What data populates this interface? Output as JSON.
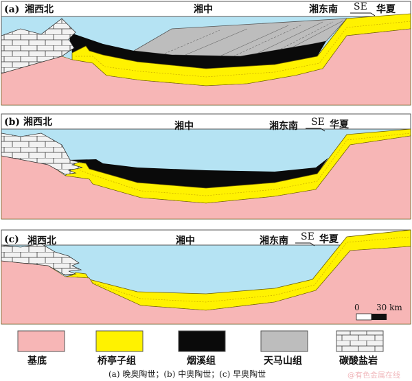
{
  "panels": [
    {
      "id": "a",
      "tag": "(a)",
      "left": "湘西北",
      "center": "湘中",
      "right": "湘东南",
      "direction": "SE",
      "far_right": "华夏",
      "layers": [
        "基底",
        "桥亭子组",
        "烟溪组",
        "天马山组",
        "碳酸盐岩"
      ]
    },
    {
      "id": "b",
      "tag": "(b)",
      "left": "湘西北",
      "center": "湘中",
      "right": "湘东南",
      "direction": "SE",
      "far_right": "华夏",
      "layers": [
        "基底",
        "桥亭子组",
        "烟溪组",
        "碳酸盐岩"
      ]
    },
    {
      "id": "c",
      "tag": "(c)",
      "left": "湘西北",
      "center": "湘中",
      "right": "湘东南",
      "direction": "SE",
      "far_right": "华夏",
      "layers": [
        "基底",
        "桥亭子组",
        "碳酸盐岩"
      ]
    }
  ],
  "scale_bar": {
    "start": "0",
    "end": "30 km"
  },
  "legend": [
    {
      "label": "基底",
      "color": "#f7b6b6"
    },
    {
      "label": "桥亭子组",
      "color": "#fff200"
    },
    {
      "label": "烟溪组",
      "color": "#0a0a0a"
    },
    {
      "label": "天马山组",
      "color": "#bdbdbd"
    },
    {
      "label": "碳酸盐岩",
      "color": "#f2f2f2"
    }
  ],
  "caption": "(a) 晚奥陶世；(b) 中奥陶世；(c) 早奥陶世",
  "watermark": "@有色金属在线",
  "colors": {
    "sea": "#b5e3f3",
    "basement": "#f7b6b6",
    "yellow": "#fff200",
    "black": "#0a0a0a",
    "gray": "#bdbdbd",
    "carbonate": "#f2f2f2"
  }
}
